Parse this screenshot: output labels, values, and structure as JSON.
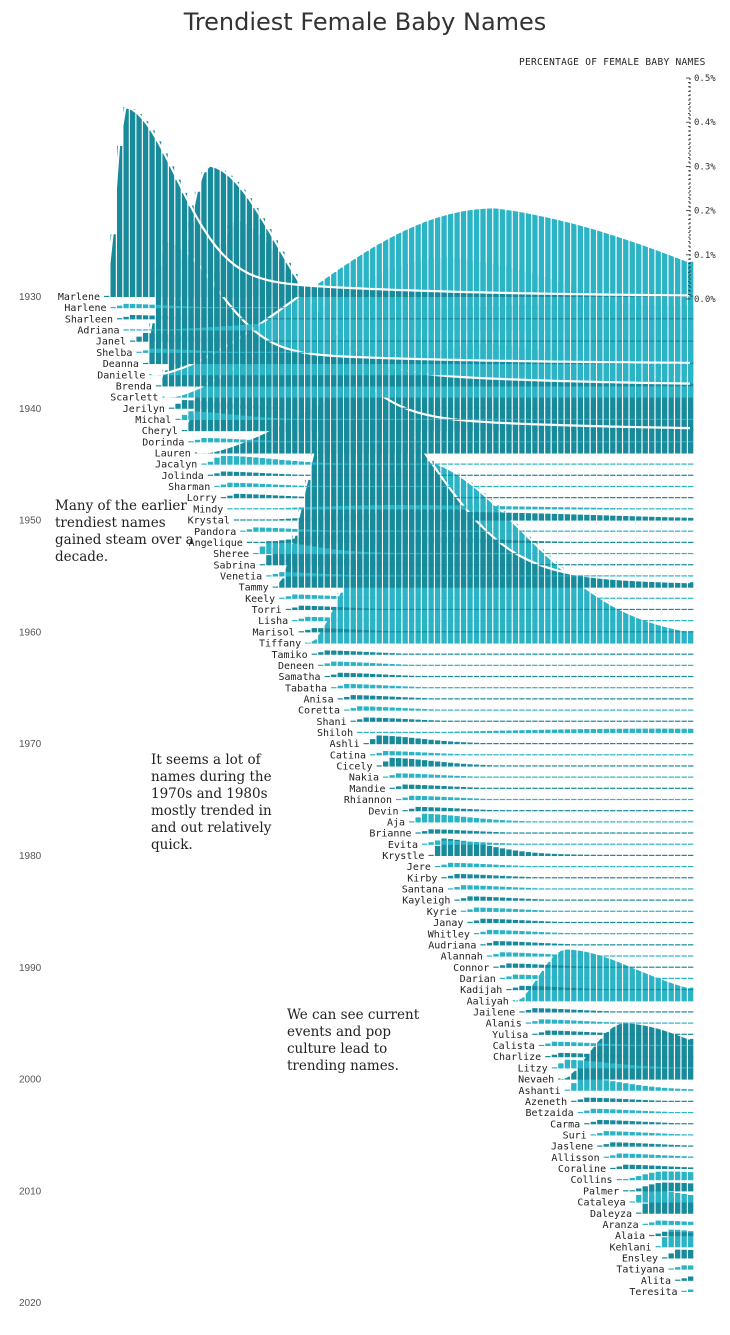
{
  "title": "Trendiest Female Baby Names",
  "axis_title": "PERCENTAGE OF FEMALE BABY NAMES",
  "notes": [
    "Many of the earlier trendiest names gained steam over a decade.",
    "It seems a lot of names during the 1970s and 1980s mostly trended in and out relatively quick.",
    "We can see current events and pop culture lead to trending names."
  ],
  "colors": {
    "bar_dark": "#178a9b",
    "bar_light": "#2bb3c6",
    "line": "#ffffff",
    "text": "#222222"
  },
  "chart_data": {
    "type": "area",
    "title": "Trendiest Female Baby Names",
    "ylabel": "PERCENTAGE OF FEMALE BABY NAMES",
    "y_ticks": [
      "0.0%",
      "0.1%",
      "0.2%",
      "0.3%",
      "0.4%",
      "0.5%"
    ],
    "ylim": [
      0,
      0.5
    ],
    "x_ticks": [
      1930,
      1940,
      1950,
      1960,
      1970,
      1980,
      1990,
      2000,
      2010,
      2020
    ],
    "xlim": [
      1930,
      2020
    ],
    "series": [
      {
        "name": "Marlene",
        "start": 1930,
        "peak_year": 1933,
        "peak": 0.43
      },
      {
        "name": "Harlene",
        "start": 1931,
        "peak_year": 1932,
        "peak": 0.01
      },
      {
        "name": "Sharleen",
        "start": 1932,
        "peak_year": 1933,
        "peak": 0.01
      },
      {
        "name": "Adriana",
        "start": 1933,
        "peak_year": 2006,
        "peak": 0.06
      },
      {
        "name": "Janel",
        "start": 1934,
        "peak_year": 1935,
        "peak": 0.02
      },
      {
        "name": "Shelba",
        "start": 1935,
        "peak_year": 1936,
        "peak": 0.01
      },
      {
        "name": "Deanna",
        "start": 1936,
        "peak_year": 1939,
        "peak": 0.28
      },
      {
        "name": "Danielle",
        "start": 1937,
        "peak_year": 1990,
        "peak": 0.38
      },
      {
        "name": "Brenda",
        "start": 1938,
        "peak_year": 1946,
        "peak": 0.5
      },
      {
        "name": "Scarlett",
        "start": 1939,
        "peak_year": 1983,
        "peak": 0.32
      },
      {
        "name": "Jerilyn",
        "start": 1940,
        "peak_year": 1941,
        "peak": 0.02
      },
      {
        "name": "Michal",
        "start": 1941,
        "peak_year": 1942,
        "peak": 0.02
      },
      {
        "name": "Cheryl",
        "start": 1942,
        "peak_year": 1950,
        "peak": 0.48
      },
      {
        "name": "Dorinda",
        "start": 1943,
        "peak_year": 1944,
        "peak": 0.01
      },
      {
        "name": "Lauren",
        "start": 1944,
        "peak_year": 1989,
        "peak": 0.25
      },
      {
        "name": "Jacalyn",
        "start": 1945,
        "peak_year": 1948,
        "peak": 0.02
      },
      {
        "name": "Jolinda",
        "start": 1946,
        "peak_year": 1947,
        "peak": 0.01
      },
      {
        "name": "Sharman",
        "start": 1947,
        "peak_year": 1948,
        "peak": 0.01
      },
      {
        "name": "Lorry",
        "start": 1948,
        "peak_year": 1949,
        "peak": 0.01
      },
      {
        "name": "Mindy",
        "start": 1949,
        "peak_year": 1975,
        "peak": 0.01
      },
      {
        "name": "Krystal",
        "start": 1950,
        "peak_year": 1982,
        "peak": 0.02
      },
      {
        "name": "Pandora",
        "start": 1951,
        "peak_year": 1952,
        "peak": 0.01
      },
      {
        "name": "Angelique",
        "start": 1952,
        "peak_year": 1968,
        "peak": 0.02
      },
      {
        "name": "Sheree",
        "start": 1953,
        "peak_year": 1954,
        "peak": 0.03
      },
      {
        "name": "Sabrina",
        "start": 1954,
        "peak_year": 1955,
        "peak": 0.04
      },
      {
        "name": "Venetia",
        "start": 1955,
        "peak_year": 1956,
        "peak": 0.01
      },
      {
        "name": "Tammy",
        "start": 1956,
        "peak_year": 1967,
        "peak": 0.48
      },
      {
        "name": "Keely",
        "start": 1957,
        "peak_year": 1958,
        "peak": 0.01
      },
      {
        "name": "Torri",
        "start": 1958,
        "peak_year": 1959,
        "peak": 0.01
      },
      {
        "name": "Lisha",
        "start": 1959,
        "peak_year": 1960,
        "peak": 0.01
      },
      {
        "name": "Marisol",
        "start": 1960,
        "peak_year": 1961,
        "peak": 0.01
      },
      {
        "name": "Tiffany",
        "start": 1961,
        "peak_year": 1978,
        "peak": 0.42
      },
      {
        "name": "Tamiko",
        "start": 1962,
        "peak_year": 1963,
        "peak": 0.01
      },
      {
        "name": "Deneen",
        "start": 1963,
        "peak_year": 1964,
        "peak": 0.01
      },
      {
        "name": "Samatha",
        "start": 1964,
        "peak_year": 1965,
        "peak": 0.01
      },
      {
        "name": "Tabatha",
        "start": 1965,
        "peak_year": 1966,
        "peak": 0.01
      },
      {
        "name": "Anisa",
        "start": 1966,
        "peak_year": 1967,
        "peak": 0.01
      },
      {
        "name": "Coretta",
        "start": 1967,
        "peak_year": 1968,
        "peak": 0.01
      },
      {
        "name": "Shani",
        "start": 1968,
        "peak_year": 1969,
        "peak": 0.01
      },
      {
        "name": "Shiloh",
        "start": 1969,
        "peak_year": 2015,
        "peak": 0.01
      },
      {
        "name": "Ashli",
        "start": 1970,
        "peak_year": 1971,
        "peak": 0.02
      },
      {
        "name": "Catina",
        "start": 1971,
        "peak_year": 1972,
        "peak": 0.01
      },
      {
        "name": "Cicely",
        "start": 1972,
        "peak_year": 1973,
        "peak": 0.02
      },
      {
        "name": "Nakia",
        "start": 1973,
        "peak_year": 1974,
        "peak": 0.01
      },
      {
        "name": "Mandie",
        "start": 1974,
        "peak_year": 1975,
        "peak": 0.01
      },
      {
        "name": "Rhiannon",
        "start": 1975,
        "peak_year": 1976,
        "peak": 0.01
      },
      {
        "name": "Devin",
        "start": 1976,
        "peak_year": 1977,
        "peak": 0.01
      },
      {
        "name": "Aja",
        "start": 1977,
        "peak_year": 1978,
        "peak": 0.02
      },
      {
        "name": "Brianne",
        "start": 1978,
        "peak_year": 1979,
        "peak": 0.01
      },
      {
        "name": "Evita",
        "start": 1979,
        "peak_year": 1980,
        "peak": 0.01
      },
      {
        "name": "Krystle",
        "start": 1980,
        "peak_year": 1981,
        "peak": 0.04
      },
      {
        "name": "Jere",
        "start": 1981,
        "peak_year": 1982,
        "peak": 0.01
      },
      {
        "name": "Kirby",
        "start": 1982,
        "peak_year": 1983,
        "peak": 0.01
      },
      {
        "name": "Santana",
        "start": 1983,
        "peak_year": 1984,
        "peak": 0.01
      },
      {
        "name": "Kayleigh",
        "start": 1984,
        "peak_year": 1985,
        "peak": 0.01
      },
      {
        "name": "Kyrie",
        "start": 1985,
        "peak_year": 1986,
        "peak": 0.01
      },
      {
        "name": "Janay",
        "start": 1986,
        "peak_year": 1987,
        "peak": 0.01
      },
      {
        "name": "Whitley",
        "start": 1987,
        "peak_year": 1988,
        "peak": 0.01
      },
      {
        "name": "Audriana",
        "start": 1988,
        "peak_year": 1989,
        "peak": 0.01
      },
      {
        "name": "Alannah",
        "start": 1989,
        "peak_year": 1990,
        "peak": 0.01
      },
      {
        "name": "Connor",
        "start": 1990,
        "peak_year": 1991,
        "peak": 0.01
      },
      {
        "name": "Darian",
        "start": 1991,
        "peak_year": 1992,
        "peak": 0.01
      },
      {
        "name": "Kadijah",
        "start": 1992,
        "peak_year": 1993,
        "peak": 0.01
      },
      {
        "name": "Aaliyah",
        "start": 1993,
        "peak_year": 2001,
        "peak": 0.12
      },
      {
        "name": "Jailene",
        "start": 1994,
        "peak_year": 1995,
        "peak": 0.01
      },
      {
        "name": "Alanis",
        "start": 1995,
        "peak_year": 1996,
        "peak": 0.01
      },
      {
        "name": "Yulisa",
        "start": 1996,
        "peak_year": 1997,
        "peak": 0.01
      },
      {
        "name": "Calista",
        "start": 1997,
        "peak_year": 1998,
        "peak": 0.01
      },
      {
        "name": "Charlize",
        "start": 1998,
        "peak_year": 1999,
        "peak": 0.01
      },
      {
        "name": "Litzy",
        "start": 1999,
        "peak_year": 2000,
        "peak": 0.02
      },
      {
        "name": "Nevaeh",
        "start": 2000,
        "peak_year": 2010,
        "peak": 0.13
      },
      {
        "name": "Ashanti",
        "start": 2001,
        "peak_year": 2002,
        "peak": 0.03
      },
      {
        "name": "Azeneth",
        "start": 2002,
        "peak_year": 2003,
        "peak": 0.01
      },
      {
        "name": "Betzaida",
        "start": 2003,
        "peak_year": 2004,
        "peak": 0.01
      },
      {
        "name": "Carma",
        "start": 2004,
        "peak_year": 2005,
        "peak": 0.01
      },
      {
        "name": "Suri",
        "start": 2005,
        "peak_year": 2006,
        "peak": 0.01
      },
      {
        "name": "Jaslene",
        "start": 2006,
        "peak_year": 2007,
        "peak": 0.01
      },
      {
        "name": "Allisson",
        "start": 2007,
        "peak_year": 2008,
        "peak": 0.01
      },
      {
        "name": "Coraline",
        "start": 2008,
        "peak_year": 2009,
        "peak": 0.01
      },
      {
        "name": "Collins",
        "start": 2009,
        "peak_year": 2016,
        "peak": 0.02
      },
      {
        "name": "Palmer",
        "start": 2010,
        "peak_year": 2016,
        "peak": 0.02
      },
      {
        "name": "Cataleya",
        "start": 2011,
        "peak_year": 2012,
        "peak": 0.03
      },
      {
        "name": "Daleyza",
        "start": 2012,
        "peak_year": 2013,
        "peak": 0.04
      },
      {
        "name": "Aranza",
        "start": 2013,
        "peak_year": 2014,
        "peak": 0.01
      },
      {
        "name": "Alaia",
        "start": 2014,
        "peak_year": 2015,
        "peak": 0.01
      },
      {
        "name": "Kehlani",
        "start": 2015,
        "peak_year": 2017,
        "peak": 0.04
      },
      {
        "name": "Ensley",
        "start": 2016,
        "peak_year": 2018,
        "peak": 0.02
      },
      {
        "name": "Tatiyana",
        "start": 2017,
        "peak_year": 2018,
        "peak": 0.01
      },
      {
        "name": "Alita",
        "start": 2018,
        "peak_year": 2019,
        "peak": 0.01
      },
      {
        "name": "Teresita",
        "start": 2019,
        "peak_year": 2020,
        "peak": 0.01
      }
    ]
  }
}
